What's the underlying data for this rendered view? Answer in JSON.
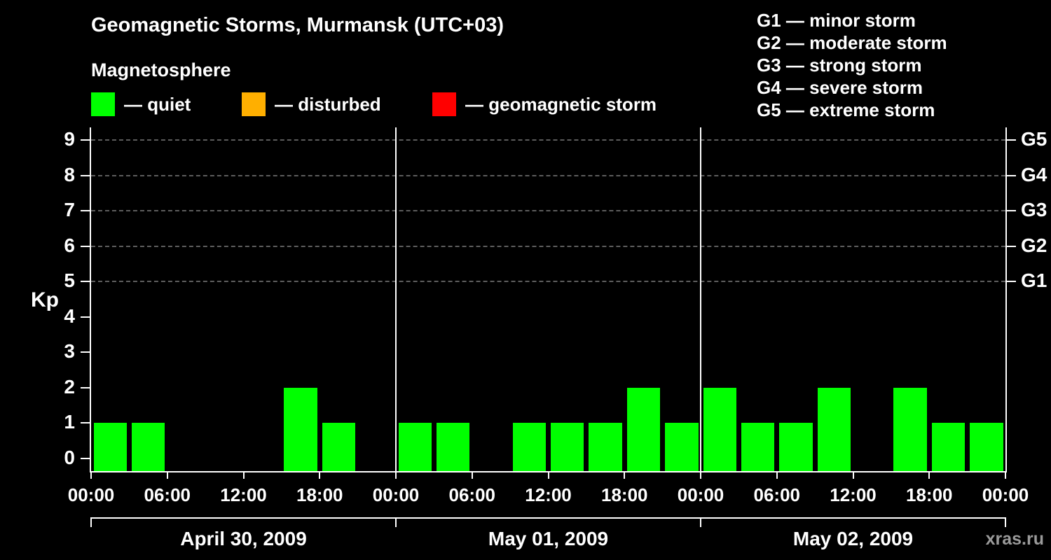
{
  "title": "Geomagnetic Storms, Murmansk (UTC+03)",
  "subtitle": "Magnetosphere",
  "legend": {
    "quiet": {
      "label": "— quiet",
      "color": "#00ff00"
    },
    "disturbed": {
      "label": "— disturbed",
      "color": "#ffaf00"
    },
    "storm": {
      "label": "— geomagnetic storm",
      "color": "#ff0000"
    }
  },
  "storm_scale_legend": [
    "G1 — minor storm",
    "G2 — moderate storm",
    "G3 — strong storm",
    "G4 — severe storm",
    "G5 — extreme storm"
  ],
  "watermark": "xras.ru",
  "chart_data": {
    "type": "bar",
    "title": "Geomagnetic Storms, Murmansk (UTC+03)",
    "ylabel": "Kp",
    "ylim": [
      0,
      9
    ],
    "yticks": [
      0,
      1,
      2,
      3,
      4,
      5,
      6,
      7,
      8,
      9
    ],
    "gridlines_kp": [
      5,
      6,
      7,
      8,
      9
    ],
    "grid": "dashed horizontal at G-storm thresholds",
    "right_axis_labels": [
      {
        "label": "G1",
        "kp": 5
      },
      {
        "label": "G2",
        "kp": 6
      },
      {
        "label": "G3",
        "kp": 7
      },
      {
        "label": "G4",
        "kp": 8
      },
      {
        "label": "G5",
        "kp": 9
      }
    ],
    "x_tick_labels": [
      "00:00",
      "06:00",
      "12:00",
      "18:00",
      "00:00",
      "06:00",
      "12:00",
      "18:00",
      "00:00",
      "06:00",
      "12:00",
      "18:00",
      "00:00"
    ],
    "hours_per_bar": 3,
    "days": [
      {
        "date": "April 30, 2009",
        "kp": [
          1,
          1,
          0,
          0,
          0,
          2,
          1,
          0
        ]
      },
      {
        "date": "May 01, 2009",
        "kp": [
          1,
          1,
          0,
          1,
          1,
          1,
          2,
          1
        ]
      },
      {
        "date": "May 02, 2009",
        "kp": [
          2,
          1,
          1,
          2,
          0,
          2,
          1,
          1
        ]
      }
    ],
    "bar_color_by_level": {
      "quiet": "#00ff00",
      "disturbed": "#ffaf00",
      "storm": "#ff0000"
    },
    "axis_color": "#ffffff",
    "gridline_color": "#7d7d7d"
  }
}
